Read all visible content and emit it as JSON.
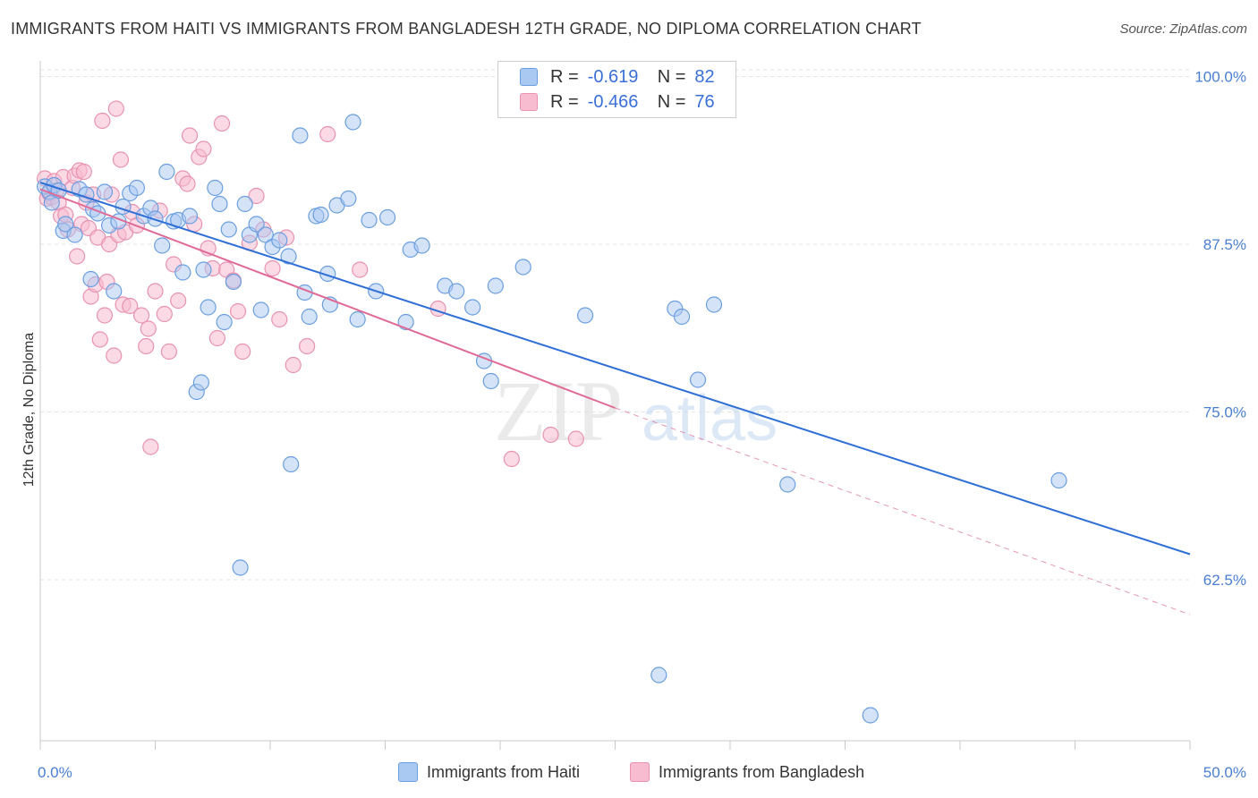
{
  "title": "IMMIGRANTS FROM HAITI VS IMMIGRANTS FROM BANGLADESH 12TH GRADE, NO DIPLOMA CORRELATION CHART",
  "source": "Source: ZipAtlas.com",
  "colors": {
    "haiti_fill": "#a9c8f2",
    "haiti_stroke": "#6a9ee0",
    "haiti_line": "#2f6fd6",
    "bangladesh_fill": "#f8bcd0",
    "bangladesh_stroke": "#e892b0",
    "bangladesh_line": "#e06a95",
    "tick_text": "#4a7fd0"
  },
  "legend": {
    "r_label": "R =",
    "n_label": "N =",
    "haiti_r": "-0.619",
    "haiti_n": "82",
    "bangladesh_r": "-0.466",
    "bangladesh_n": "76"
  },
  "bottom_legend": {
    "haiti": "Immigrants from Haiti",
    "bangladesh": "Immigrants from Bangladesh"
  },
  "watermark": {
    "zip": "ZIP",
    "atlas": "atlas"
  },
  "chart_data": {
    "type": "scatter",
    "title": "IMMIGRANTS FROM HAITI VS IMMIGRANTS FROM BANGLADESH 12TH GRADE, NO DIPLOMA CORRELATION CHART",
    "xlabel": "",
    "ylabel": "12th Grade, No Diploma",
    "xlim": [
      0,
      50
    ],
    "ylim": [
      50.5,
      100.5
    ],
    "x_tick_labels": [
      "0.0%",
      "50.0%"
    ],
    "y_ticks": [
      100,
      87.5,
      75,
      62.5
    ],
    "y_tick_labels": [
      "100.0%",
      "87.5%",
      "75.0%",
      "62.5%"
    ],
    "grid": true,
    "series": [
      {
        "name": "Immigrants from Haiti",
        "r": -0.619,
        "n": 82,
        "trend": {
          "x": [
            0,
            50
          ],
          "y": [
            92.1,
            64.4
          ],
          "style": "solid"
        },
        "points": [
          [
            0.2,
            91.8
          ],
          [
            0.4,
            91.4
          ],
          [
            0.5,
            90.6
          ],
          [
            0.6,
            91.9
          ],
          [
            0.8,
            91.5
          ],
          [
            1.0,
            88.5
          ],
          [
            1.1,
            89.0
          ],
          [
            1.5,
            88.2
          ],
          [
            1.7,
            91.6
          ],
          [
            2.0,
            91.2
          ],
          [
            2.2,
            84.9
          ],
          [
            2.3,
            90.1
          ],
          [
            2.5,
            89.8
          ],
          [
            2.8,
            91.4
          ],
          [
            3.0,
            88.9
          ],
          [
            3.2,
            84.0
          ],
          [
            3.4,
            89.2
          ],
          [
            3.6,
            90.3
          ],
          [
            3.9,
            91.3
          ],
          [
            4.2,
            91.7
          ],
          [
            4.5,
            89.6
          ],
          [
            4.8,
            90.2
          ],
          [
            5.0,
            89.4
          ],
          [
            5.3,
            87.4
          ],
          [
            5.5,
            92.9
          ],
          [
            5.8,
            89.2
          ],
          [
            6.0,
            89.3
          ],
          [
            6.2,
            85.4
          ],
          [
            6.5,
            89.6
          ],
          [
            6.8,
            76.5
          ],
          [
            7.0,
            77.2
          ],
          [
            7.1,
            85.6
          ],
          [
            7.3,
            82.8
          ],
          [
            7.6,
            91.7
          ],
          [
            7.8,
            90.5
          ],
          [
            8.0,
            81.7
          ],
          [
            8.2,
            88.6
          ],
          [
            8.4,
            84.7
          ],
          [
            8.7,
            63.4
          ],
          [
            8.9,
            90.5
          ],
          [
            9.1,
            88.2
          ],
          [
            9.4,
            89.0
          ],
          [
            9.6,
            82.6
          ],
          [
            9.8,
            88.2
          ],
          [
            10.1,
            87.3
          ],
          [
            10.4,
            87.8
          ],
          [
            10.8,
            86.6
          ],
          [
            10.9,
            71.1
          ],
          [
            11.3,
            95.6
          ],
          [
            11.5,
            83.9
          ],
          [
            11.7,
            82.1
          ],
          [
            12.0,
            89.6
          ],
          [
            12.2,
            89.7
          ],
          [
            12.5,
            85.3
          ],
          [
            12.6,
            83.0
          ],
          [
            12.9,
            90.4
          ],
          [
            13.4,
            90.9
          ],
          [
            13.6,
            96.6
          ],
          [
            13.8,
            81.9
          ],
          [
            14.3,
            89.3
          ],
          [
            14.6,
            84.0
          ],
          [
            15.1,
            89.5
          ],
          [
            15.9,
            81.7
          ],
          [
            16.1,
            87.1
          ],
          [
            16.6,
            87.4
          ],
          [
            17.6,
            84.4
          ],
          [
            18.1,
            84.0
          ],
          [
            18.8,
            82.8
          ],
          [
            19.3,
            78.8
          ],
          [
            19.6,
            77.3
          ],
          [
            19.8,
            84.4
          ],
          [
            21.0,
            85.8
          ],
          [
            23.7,
            82.2
          ],
          [
            26.9,
            55.4
          ],
          [
            27.6,
            82.7
          ],
          [
            27.9,
            82.1
          ],
          [
            28.6,
            77.4
          ],
          [
            29.3,
            83.0
          ],
          [
            32.5,
            69.6
          ],
          [
            36.1,
            52.4
          ],
          [
            44.3,
            69.9
          ]
        ]
      },
      {
        "name": "Immigrants from Bangladesh",
        "r": -0.466,
        "n": 76,
        "trend": {
          "x": [
            0,
            25
          ],
          "y": [
            91.6,
            75.3
          ],
          "style": "solid"
        },
        "trend_extension": {
          "x": [
            25,
            50
          ],
          "y": [
            75.3,
            59.9
          ],
          "style": "dashed"
        },
        "points": [
          [
            0.2,
            92.4
          ],
          [
            0.3,
            90.9
          ],
          [
            0.4,
            91.3
          ],
          [
            0.5,
            91.0
          ],
          [
            0.6,
            92.2
          ],
          [
            0.7,
            91.5
          ],
          [
            0.8,
            90.6
          ],
          [
            0.9,
            89.6
          ],
          [
            1.0,
            92.5
          ],
          [
            1.1,
            89.7
          ],
          [
            1.2,
            88.6
          ],
          [
            1.4,
            91.7
          ],
          [
            1.5,
            92.6
          ],
          [
            1.6,
            86.6
          ],
          [
            1.7,
            93.0
          ],
          [
            1.8,
            89.0
          ],
          [
            1.9,
            92.9
          ],
          [
            2.0,
            90.6
          ],
          [
            2.1,
            88.7
          ],
          [
            2.2,
            83.6
          ],
          [
            2.3,
            91.2
          ],
          [
            2.4,
            84.5
          ],
          [
            2.5,
            88.0
          ],
          [
            2.6,
            80.4
          ],
          [
            2.7,
            96.7
          ],
          [
            2.8,
            82.2
          ],
          [
            2.9,
            84.7
          ],
          [
            3.0,
            87.5
          ],
          [
            3.1,
            91.2
          ],
          [
            3.2,
            79.2
          ],
          [
            3.3,
            97.6
          ],
          [
            3.4,
            88.2
          ],
          [
            3.5,
            93.8
          ],
          [
            3.6,
            83.0
          ],
          [
            3.7,
            88.4
          ],
          [
            3.9,
            82.9
          ],
          [
            4.0,
            89.9
          ],
          [
            4.2,
            88.9
          ],
          [
            4.4,
            82.2
          ],
          [
            4.6,
            79.9
          ],
          [
            4.7,
            81.2
          ],
          [
            4.8,
            72.4
          ],
          [
            5.0,
            84.0
          ],
          [
            5.2,
            90.0
          ],
          [
            5.4,
            82.3
          ],
          [
            5.6,
            79.5
          ],
          [
            5.8,
            86.0
          ],
          [
            6.0,
            83.3
          ],
          [
            6.2,
            92.4
          ],
          [
            6.4,
            92.0
          ],
          [
            6.5,
            95.6
          ],
          [
            6.7,
            89.0
          ],
          [
            6.9,
            94.0
          ],
          [
            7.1,
            94.6
          ],
          [
            7.3,
            87.2
          ],
          [
            7.5,
            85.7
          ],
          [
            7.7,
            80.5
          ],
          [
            7.9,
            96.5
          ],
          [
            8.1,
            85.6
          ],
          [
            8.4,
            84.8
          ],
          [
            8.6,
            82.5
          ],
          [
            8.8,
            79.5
          ],
          [
            9.1,
            87.6
          ],
          [
            9.4,
            91.1
          ],
          [
            9.7,
            88.6
          ],
          [
            10.1,
            85.7
          ],
          [
            10.4,
            81.9
          ],
          [
            10.7,
            88.0
          ],
          [
            11.0,
            78.5
          ],
          [
            11.6,
            79.9
          ],
          [
            12.5,
            95.7
          ],
          [
            13.9,
            85.6
          ],
          [
            17.3,
            82.7
          ],
          [
            20.5,
            71.5
          ],
          [
            22.2,
            73.3
          ],
          [
            23.3,
            73.0
          ]
        ]
      }
    ]
  }
}
